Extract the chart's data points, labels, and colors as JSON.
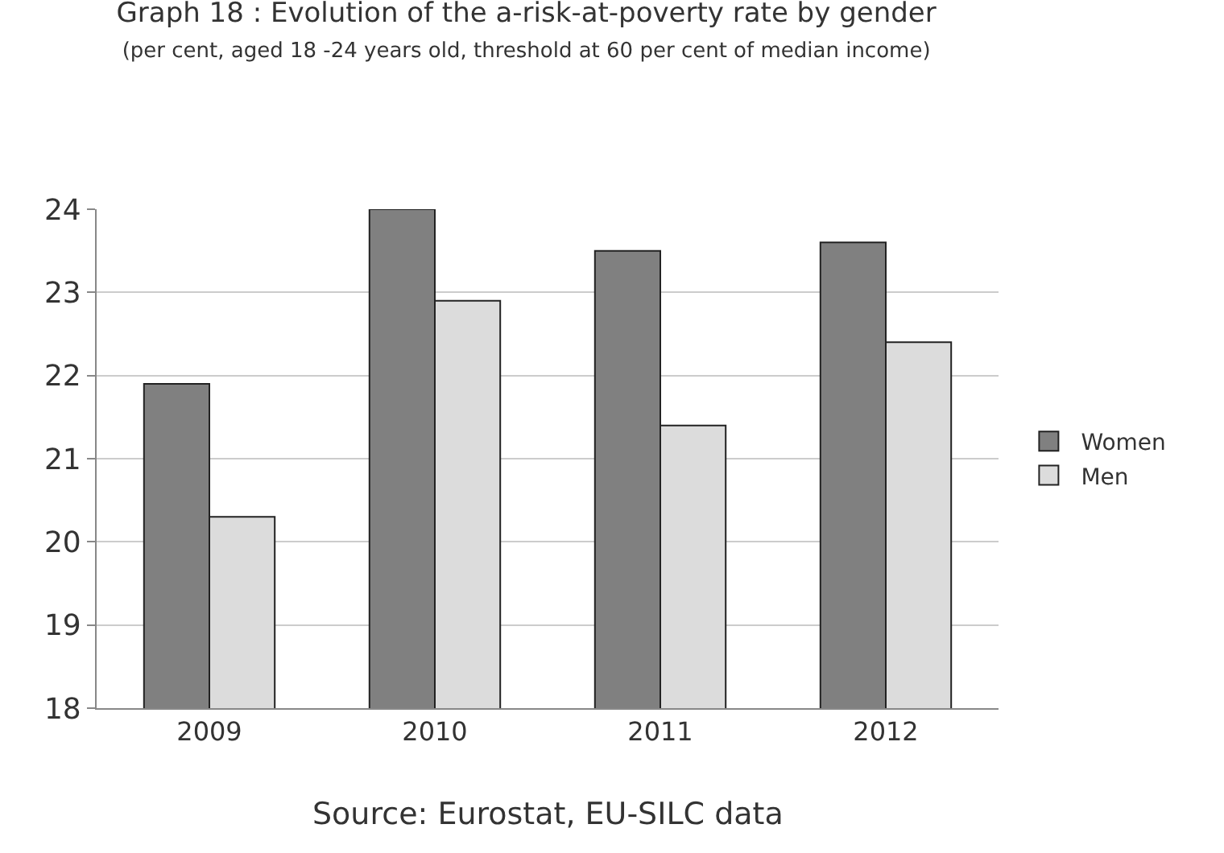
{
  "chart_data": {
    "type": "bar",
    "title": "Graph 18 : Evolution of the a-risk-at-poverty rate by gender",
    "subtitle": "(per cent, aged 18 -24 years old, threshold at 60 per cent of median income)",
    "categories": [
      "2009",
      "2010",
      "2011",
      "2012"
    ],
    "series": [
      {
        "name": "Women",
        "color": "#808080",
        "values": [
          21.9,
          24.0,
          23.5,
          23.6
        ]
      },
      {
        "name": "Men",
        "color": "#dcdcdc",
        "values": [
          20.3,
          22.9,
          21.4,
          22.4
        ]
      }
    ],
    "ylim": [
      18,
      24
    ],
    "yticks": [
      18,
      19,
      20,
      21,
      22,
      23,
      24
    ],
    "grid": "y",
    "legend": "right",
    "annotations": [
      "Source: Eurostat, EU-SILC data"
    ]
  }
}
